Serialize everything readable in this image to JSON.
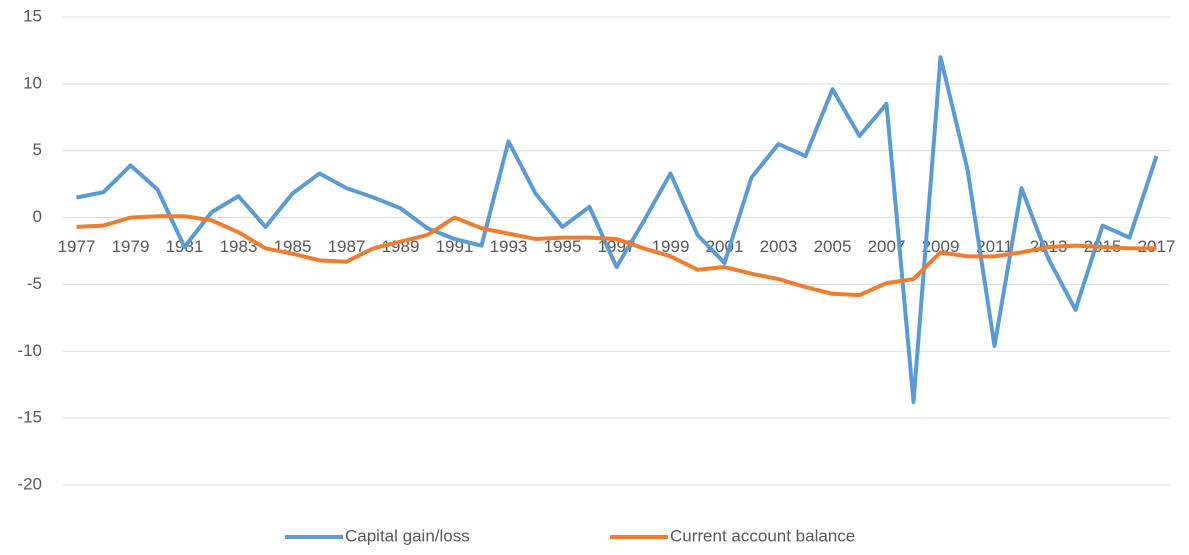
{
  "chart_data": {
    "type": "line",
    "categories": [
      "1977",
      null,
      "1979",
      null,
      "1981",
      null,
      "1983",
      null,
      "1985",
      null,
      "1987",
      null,
      "1989",
      null,
      "1991",
      null,
      "1993",
      null,
      "1995",
      null,
      "1997",
      null,
      "1999",
      null,
      "2001",
      null,
      "2003",
      null,
      "2005",
      null,
      "2007",
      null,
      "2009",
      null,
      "2011",
      null,
      "2013",
      null,
      "2015",
      null,
      "2017"
    ],
    "series": [
      {
        "name": "Capital gain/loss",
        "color": "#5b9bd5",
        "values": [
          1.5,
          1.9,
          3.9,
          2.1,
          -2.2,
          0.4,
          1.6,
          -0.7,
          1.8,
          3.3,
          2.2,
          1.5,
          0.7,
          -0.8,
          -1.6,
          -2.1,
          5.7,
          1.8,
          -0.7,
          0.8,
          -3.7,
          -0.3,
          3.3,
          -1.3,
          -3.4,
          3.0,
          5.5,
          4.6,
          9.6,
          6.1,
          8.5,
          -13.8,
          12.0,
          3.6,
          -9.6,
          2.2,
          -3.1,
          -6.9,
          -0.6,
          -1.5,
          4.6
        ]
      },
      {
        "name": "Current account balance",
        "color": "#ed7d31",
        "values": [
          -0.7,
          -0.6,
          0.0,
          0.1,
          0.1,
          -0.2,
          -1.1,
          -2.3,
          -2.7,
          -3.2,
          -3.3,
          -2.3,
          -1.8,
          -1.3,
          0.0,
          -0.8,
          -1.2,
          -1.6,
          -1.5,
          -1.5,
          -1.6,
          -2.3,
          -2.9,
          -3.9,
          -3.7,
          -4.2,
          -4.6,
          -5.2,
          -5.7,
          -5.8,
          -4.9,
          -4.6,
          -2.6,
          -2.9,
          -2.9,
          -2.6,
          -2.2,
          -2.1,
          -2.2,
          -2.3,
          -2.3
        ]
      }
    ],
    "ylim": [
      -20,
      15
    ],
    "yticks": [
      -20,
      -15,
      -10,
      -5,
      0,
      5,
      10,
      15
    ],
    "grid": true,
    "legend": "bottom"
  }
}
